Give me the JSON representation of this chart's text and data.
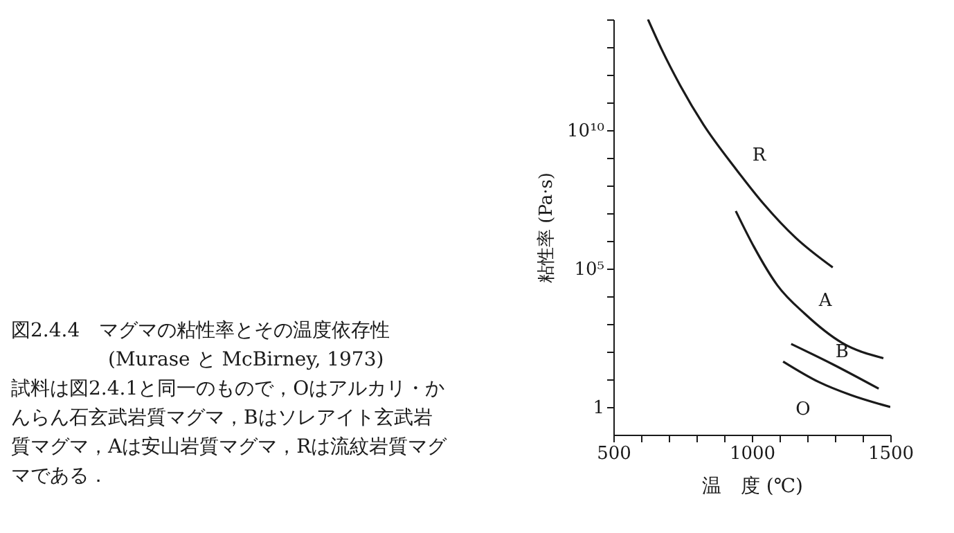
{
  "chart_data": {
    "type": "line",
    "title": "図2.4.4　マグマの粘性率とその温度依存性(Murase と McBirney, 1973)",
    "annotations": [
      "試料は図2.4.1と同一のもので，Oはアルカリ・かんらん石玄武岩質マグマ，Bはソレアイト玄武岩質マグマ，Aは安山岩質マグマ，Rは流紋岩質マグマである．"
    ],
    "xlabel": "温　度 (℃)",
    "ylabel": "粘性率 (Pa·s)",
    "log": "y",
    "xlim": [
      500,
      1500
    ],
    "ylim": [
      0.1,
      100000000000000.0
    ],
    "xticks": [
      500,
      {
        "value": 600,
        "label": null
      },
      {
        "value": 700,
        "label": null
      },
      {
        "value": 800,
        "label": null
      },
      {
        "value": 900,
        "label": null
      },
      1000,
      {
        "value": 1100,
        "label": null
      },
      {
        "value": 1200,
        "label": null
      },
      {
        "value": 1300,
        "label": null
      },
      {
        "value": 1400,
        "label": null
      },
      1500
    ],
    "yticks": [
      1,
      {
        "value": 10,
        "label": null
      },
      {
        "value": 100,
        "label": null
      },
      {
        "value": 1000,
        "label": null
      },
      {
        "value": 10000,
        "label": null
      },
      {
        "value": 100000,
        "label": "10⁵"
      },
      {
        "value": 1000000,
        "label": null
      },
      {
        "value": 10000000,
        "label": null
      },
      {
        "value": 100000000,
        "label": null
      },
      {
        "value": 1000000000,
        "label": null
      },
      {
        "value": 10000000000,
        "label": "10¹⁰"
      },
      {
        "value": 100000000000,
        "label": null
      },
      {
        "value": 1000000000000,
        "label": null
      },
      {
        "value": 10000000000000,
        "label": null
      },
      {
        "value": 100000000000000,
        "label": null
      }
    ],
    "grid": false,
    "series": [
      {
        "name": "R",
        "color": "#1a1a1a",
        "x": [
          625,
          675,
          742,
          825,
          942,
          1042,
          1158,
          1292
        ],
        "values": [
          100000000000000.0,
          8000000000000.0,
          400000000000.0,
          16000000000.0,
          400000000.0,
          22000000.0,
          1300000.0,
          110000.0
        ]
      },
      {
        "name": "A",
        "color": "#1a1a1a",
        "x": [
          942,
          1008,
          1092,
          1192,
          1325,
          1475
        ],
        "values": [
          12000000.0,
          600000.0,
          25000.0,
          2300,
          210,
          58
        ]
      },
      {
        "name": "B",
        "color": "#1a1a1a",
        "x": [
          1142,
          1292,
          1458
        ],
        "values": [
          190,
          35,
          4.6
        ]
      },
      {
        "name": "O",
        "color": "#1a1a1a",
        "x": [
          1113,
          1242,
          1358,
          1500
        ],
        "values": [
          44,
          8,
          2.7,
          1
        ]
      }
    ]
  }
}
